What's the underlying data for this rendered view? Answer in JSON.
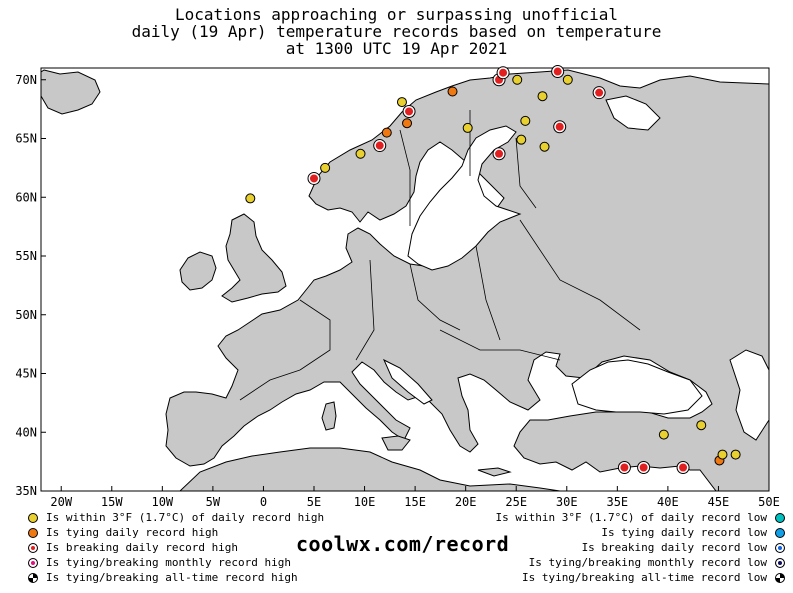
{
  "title": {
    "line1": "Locations approaching or surpassing unofficial",
    "line2": "daily (19 Apr) temperature records based on temperature",
    "line3": "at 1300 UTC 19 Apr 2021"
  },
  "axes": {
    "lat_labels": [
      "70N",
      "65N",
      "60N",
      "55N",
      "50N",
      "45N",
      "40N",
      "35N"
    ],
    "lon_labels": [
      "20W",
      "15W",
      "10W",
      "5W",
      "0",
      "5E",
      "10E",
      "15E",
      "20E",
      "25E",
      "30E",
      "35E",
      "40E",
      "45E",
      "50E"
    ],
    "lon_range": [
      -22,
      50
    ],
    "lat_range": [
      35,
      71
    ]
  },
  "colors": {
    "land": "#c8c8c8",
    "water": "#ffffff",
    "yellow": "#e8d030",
    "orange": "#f07810",
    "red": "#e02020",
    "magenta": "#e01080",
    "cyan": "#00c0c0",
    "lightblue": "#10a0e8",
    "blue": "#1060e0",
    "darkblue": "#101060"
  },
  "stations": [
    {
      "lon": -1.3,
      "lat": 59.9,
      "cat": "yellow"
    },
    {
      "lon": 5.0,
      "lat": 61.6,
      "cat": "red"
    },
    {
      "lon": 6.1,
      "lat": 62.5,
      "cat": "yellow"
    },
    {
      "lon": 9.6,
      "lat": 63.7,
      "cat": "yellow"
    },
    {
      "lon": 11.5,
      "lat": 64.4,
      "cat": "red"
    },
    {
      "lon": 12.2,
      "lat": 65.5,
      "cat": "orange"
    },
    {
      "lon": 14.2,
      "lat": 66.3,
      "cat": "orange"
    },
    {
      "lon": 14.4,
      "lat": 67.3,
      "cat": "red"
    },
    {
      "lon": 13.7,
      "lat": 68.1,
      "cat": "yellow"
    },
    {
      "lon": 18.7,
      "lat": 69.0,
      "cat": "orange"
    },
    {
      "lon": 23.3,
      "lat": 70.0,
      "cat": "red"
    },
    {
      "lon": 23.7,
      "lat": 70.6,
      "cat": "red"
    },
    {
      "lon": 25.1,
      "lat": 70.0,
      "cat": "yellow"
    },
    {
      "lon": 29.1,
      "lat": 70.7,
      "cat": "red"
    },
    {
      "lon": 30.1,
      "lat": 70.0,
      "cat": "yellow"
    },
    {
      "lon": 33.2,
      "lat": 68.9,
      "cat": "red"
    },
    {
      "lon": 27.6,
      "lat": 68.6,
      "cat": "yellow"
    },
    {
      "lon": 25.9,
      "lat": 66.5,
      "cat": "yellow"
    },
    {
      "lon": 29.3,
      "lat": 66.0,
      "cat": "red"
    },
    {
      "lon": 20.2,
      "lat": 65.9,
      "cat": "yellow"
    },
    {
      "lon": 25.5,
      "lat": 64.9,
      "cat": "yellow"
    },
    {
      "lon": 27.8,
      "lat": 64.3,
      "cat": "yellow"
    },
    {
      "lon": 23.3,
      "lat": 63.7,
      "cat": "red"
    },
    {
      "lon": 35.7,
      "lat": 37.0,
      "cat": "red"
    },
    {
      "lon": 37.6,
      "lat": 37.0,
      "cat": "red"
    },
    {
      "lon": 41.5,
      "lat": 37.0,
      "cat": "red"
    },
    {
      "lon": 39.6,
      "lat": 39.8,
      "cat": "yellow"
    },
    {
      "lon": 43.3,
      "lat": 40.6,
      "cat": "yellow"
    },
    {
      "lon": 45.1,
      "lat": 37.6,
      "cat": "orange"
    },
    {
      "lon": 45.4,
      "lat": 38.1,
      "cat": "yellow"
    },
    {
      "lon": 46.7,
      "lat": 38.1,
      "cat": "yellow"
    }
  ],
  "legend": {
    "left": [
      {
        "label": "Is within 3°F (1.7°C) of daily record high",
        "dot": "yellow"
      },
      {
        "label": "Is tying daily record high",
        "dot": "orange"
      },
      {
        "label": "Is breaking daily record high",
        "dot": "red"
      },
      {
        "label": "Is tying/breaking monthly record high",
        "dot": "magenta"
      },
      {
        "label": "Is tying/breaking all-time record high",
        "dot": "checker"
      }
    ],
    "right": [
      {
        "label": "Is within 3°F (1.7°C) of daily record low",
        "dot": "cyan"
      },
      {
        "label": "Is tying daily record low",
        "dot": "lightblue"
      },
      {
        "label": "Is breaking daily record low",
        "dot": "blue"
      },
      {
        "label": "Is tying/breaking monthly record low",
        "dot": "darkblue"
      },
      {
        "label": "Is tying/breaking all-time record low",
        "dot": "checker"
      }
    ]
  },
  "brand": "coolwx.com/record"
}
